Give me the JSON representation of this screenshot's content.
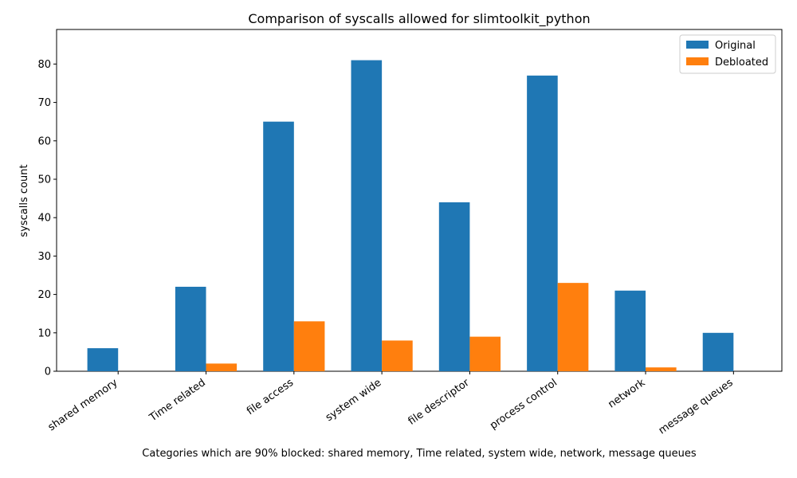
{
  "chart_data": {
    "type": "bar",
    "title": "Comparison of syscalls allowed for slimtoolkit_python",
    "xlabel": "Categories which are 90% blocked: shared memory, Time related, system wide, network, message queues",
    "ylabel": "syscalls count",
    "categories": [
      "shared memory",
      "Time related",
      "file access",
      "system wide",
      "file descriptor",
      "process control",
      "network",
      "message queues"
    ],
    "series": [
      {
        "name": "Original",
        "color": "#1f77b4",
        "values": [
          6,
          22,
          65,
          81,
          44,
          77,
          21,
          10
        ]
      },
      {
        "name": "Debloated",
        "color": "#ff7f0e",
        "values": [
          0,
          2,
          13,
          8,
          9,
          23,
          1,
          0
        ]
      }
    ],
    "ylim": [
      0,
      89
    ],
    "yticks": [
      0,
      10,
      20,
      30,
      40,
      50,
      60,
      70,
      80
    ],
    "grid": false,
    "legend_position": "top-right"
  }
}
